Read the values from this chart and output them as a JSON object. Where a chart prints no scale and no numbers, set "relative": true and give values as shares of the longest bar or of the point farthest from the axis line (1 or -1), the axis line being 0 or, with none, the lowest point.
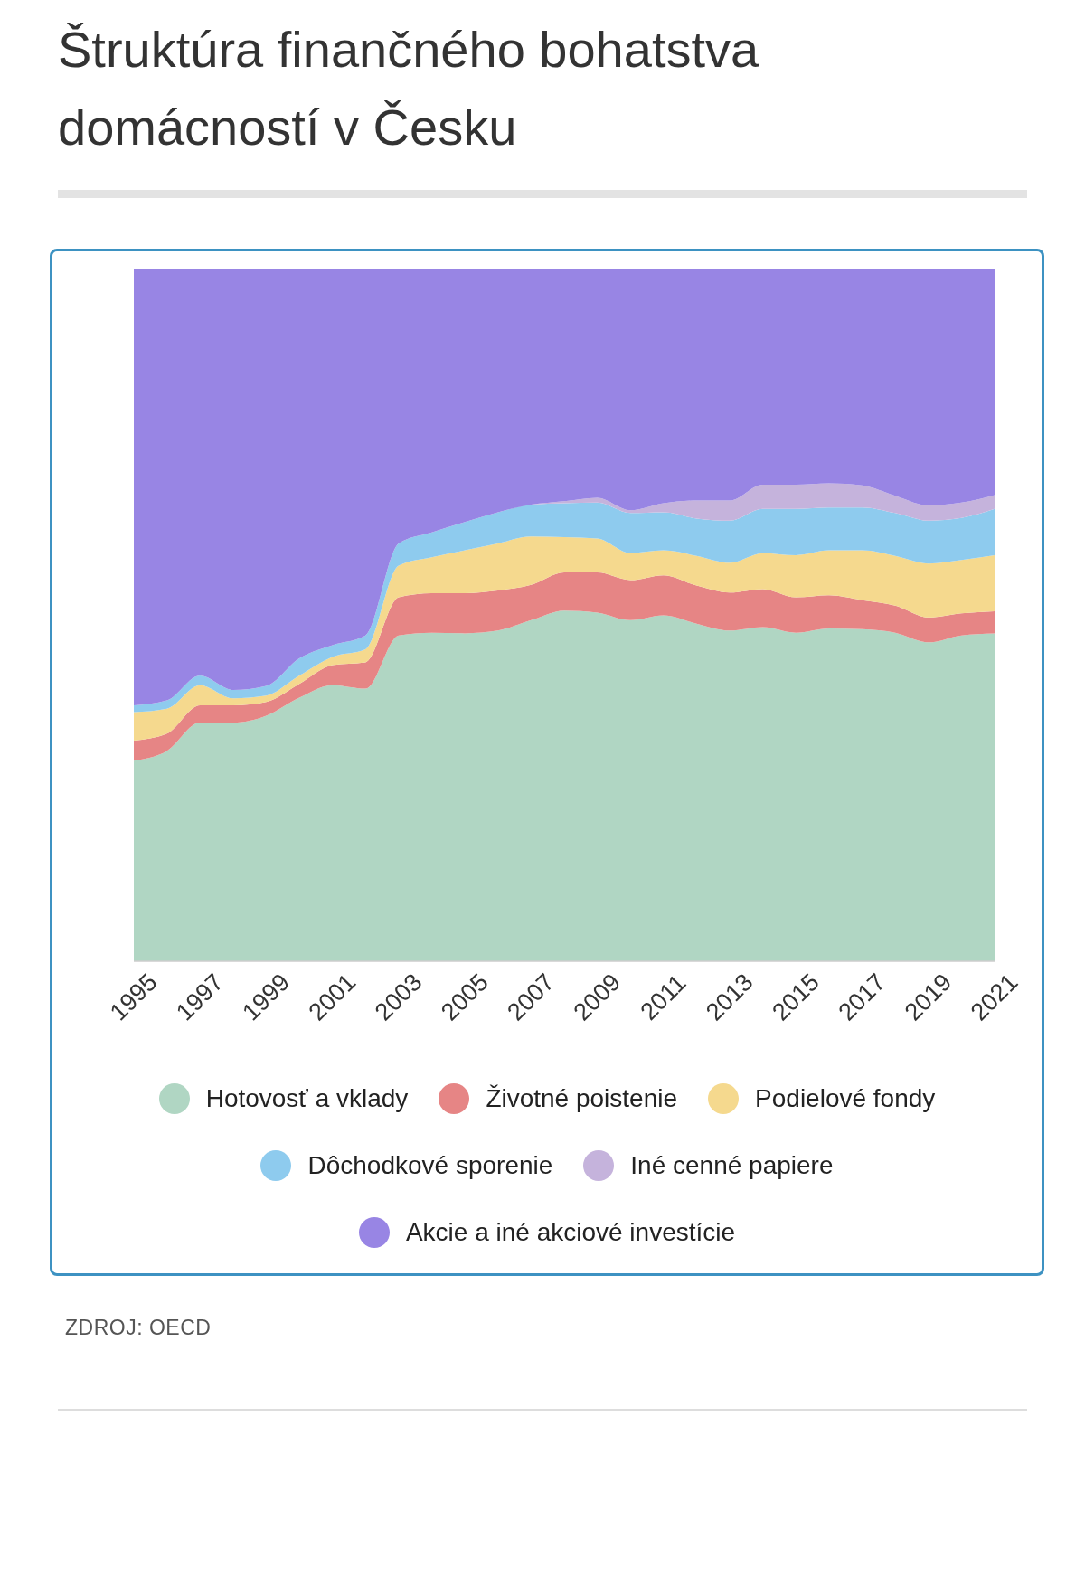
{
  "chart_data": {
    "type": "area",
    "title": "Štruktúra finančného bohatstva domácností v Česku",
    "annotations": [
      "ZDROJ: OECD"
    ],
    "stacked": true,
    "relative": true,
    "legend": "bottom",
    "grid": false,
    "x": [
      1995,
      1996,
      1997,
      1998,
      1999,
      2000,
      2001,
      2002,
      2003,
      2004,
      2005,
      2006,
      2007,
      2008,
      2009,
      2010,
      2011,
      2012,
      2013,
      2014,
      2015,
      2016,
      2017,
      2018,
      2019,
      2020,
      2021
    ],
    "xlim": [
      1995,
      2021
    ],
    "xticks": [
      1995,
      1997,
      1999,
      2001,
      2003,
      2005,
      2007,
      2009,
      2011,
      2013,
      2015,
      2017,
      2019,
      2021
    ],
    "series": [
      {
        "name": "Hotovosť a vklady",
        "color": "#b0d6c3",
        "values": [
          0.29,
          0.304,
          0.345,
          0.345,
          0.355,
          0.381,
          0.399,
          0.394,
          0.471,
          0.475,
          0.474,
          0.478,
          0.493,
          0.507,
          0.504,
          0.493,
          0.5,
          0.488,
          0.478,
          0.483,
          0.475,
          0.481,
          0.48,
          0.475,
          0.461,
          0.471,
          0.474
        ]
      },
      {
        "name": "Životné poistenie",
        "color": "#e68585",
        "values": [
          0.029,
          0.025,
          0.025,
          0.025,
          0.02,
          0.02,
          0.029,
          0.038,
          0.055,
          0.057,
          0.058,
          0.058,
          0.051,
          0.055,
          0.058,
          0.058,
          0.058,
          0.055,
          0.055,
          0.055,
          0.051,
          0.048,
          0.042,
          0.039,
          0.036,
          0.032,
          0.032
        ]
      },
      {
        "name": "Podielové fondy",
        "color": "#f5d98e",
        "values": [
          0.041,
          0.036,
          0.029,
          0.01,
          0.009,
          0.012,
          0.012,
          0.019,
          0.046,
          0.052,
          0.062,
          0.068,
          0.07,
          0.051,
          0.049,
          0.039,
          0.036,
          0.043,
          0.043,
          0.052,
          0.061,
          0.065,
          0.072,
          0.072,
          0.078,
          0.077,
          0.081
        ]
      },
      {
        "name": "Dôchodkové sporenie",
        "color": "#8ecbee",
        "values": [
          0.01,
          0.012,
          0.014,
          0.012,
          0.014,
          0.025,
          0.017,
          0.02,
          0.032,
          0.036,
          0.041,
          0.045,
          0.046,
          0.049,
          0.052,
          0.058,
          0.055,
          0.054,
          0.061,
          0.064,
          0.067,
          0.062,
          0.062,
          0.062,
          0.062,
          0.061,
          0.067
        ]
      },
      {
        "name": "Iné cenné papiere",
        "color": "#c5b3dc",
        "values": [
          0,
          0,
          0,
          0,
          0,
          0,
          0,
          0,
          0,
          0,
          0,
          0,
          0,
          0.003,
          0.007,
          0.004,
          0.013,
          0.026,
          0.029,
          0.035,
          0.035,
          0.035,
          0.032,
          0.025,
          0.022,
          0.022,
          0.02
        ]
      },
      {
        "name": "Akcie a iné akciové investície",
        "color": "#9885e4",
        "values": [
          0.63,
          0.623,
          0.587,
          0.608,
          0.602,
          0.562,
          0.543,
          0.529,
          0.396,
          0.38,
          0.365,
          0.351,
          0.34,
          0.335,
          0.33,
          0.348,
          0.338,
          0.334,
          0.334,
          0.311,
          0.311,
          0.309,
          0.312,
          0.327,
          0.341,
          0.337,
          0.326
        ]
      }
    ]
  }
}
